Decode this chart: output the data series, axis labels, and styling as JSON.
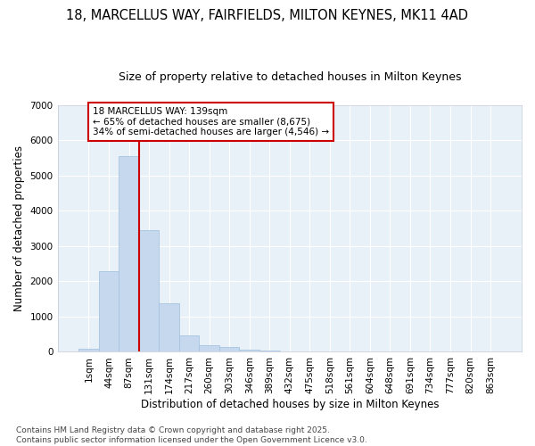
{
  "title_line1": "18, MARCELLUS WAY, FAIRFIELDS, MILTON KEYNES, MK11 4AD",
  "title_line2": "Size of property relative to detached houses in Milton Keynes",
  "xlabel": "Distribution of detached houses by size in Milton Keynes",
  "ylabel": "Number of detached properties",
  "categories": [
    "1sqm",
    "44sqm",
    "87sqm",
    "131sqm",
    "174sqm",
    "217sqm",
    "260sqm",
    "303sqm",
    "346sqm",
    "389sqm",
    "432sqm",
    "475sqm",
    "518sqm",
    "561sqm",
    "604sqm",
    "648sqm",
    "691sqm",
    "734sqm",
    "777sqm",
    "820sqm",
    "863sqm"
  ],
  "values": [
    80,
    2300,
    5560,
    3450,
    1370,
    470,
    200,
    130,
    60,
    30,
    0,
    0,
    0,
    0,
    0,
    0,
    0,
    0,
    0,
    0,
    0
  ],
  "bar_color": "#c5d8ee",
  "bar_edgecolor": "#a8c4e0",
  "bg_color": "#e8f0f8",
  "grid_color": "#ffffff",
  "vline_color": "#cc0000",
  "ylim": [
    0,
    7000
  ],
  "yticks": [
    0,
    1000,
    2000,
    3000,
    4000,
    5000,
    6000,
    7000
  ],
  "annotation_text": "18 MARCELLUS WAY: 139sqm\n← 65% of detached houses are smaller (8,675)\n34% of semi-detached houses are larger (4,546) →",
  "annotation_box_color": "#cc0000",
  "footnote": "Contains HM Land Registry data © Crown copyright and database right 2025.\nContains public sector information licensed under the Open Government Licence v3.0.",
  "title1_fontsize": 10.5,
  "title2_fontsize": 9,
  "axis_label_fontsize": 8.5,
  "tick_fontsize": 7.5,
  "annotation_fontsize": 7.5,
  "footnote_fontsize": 6.5
}
